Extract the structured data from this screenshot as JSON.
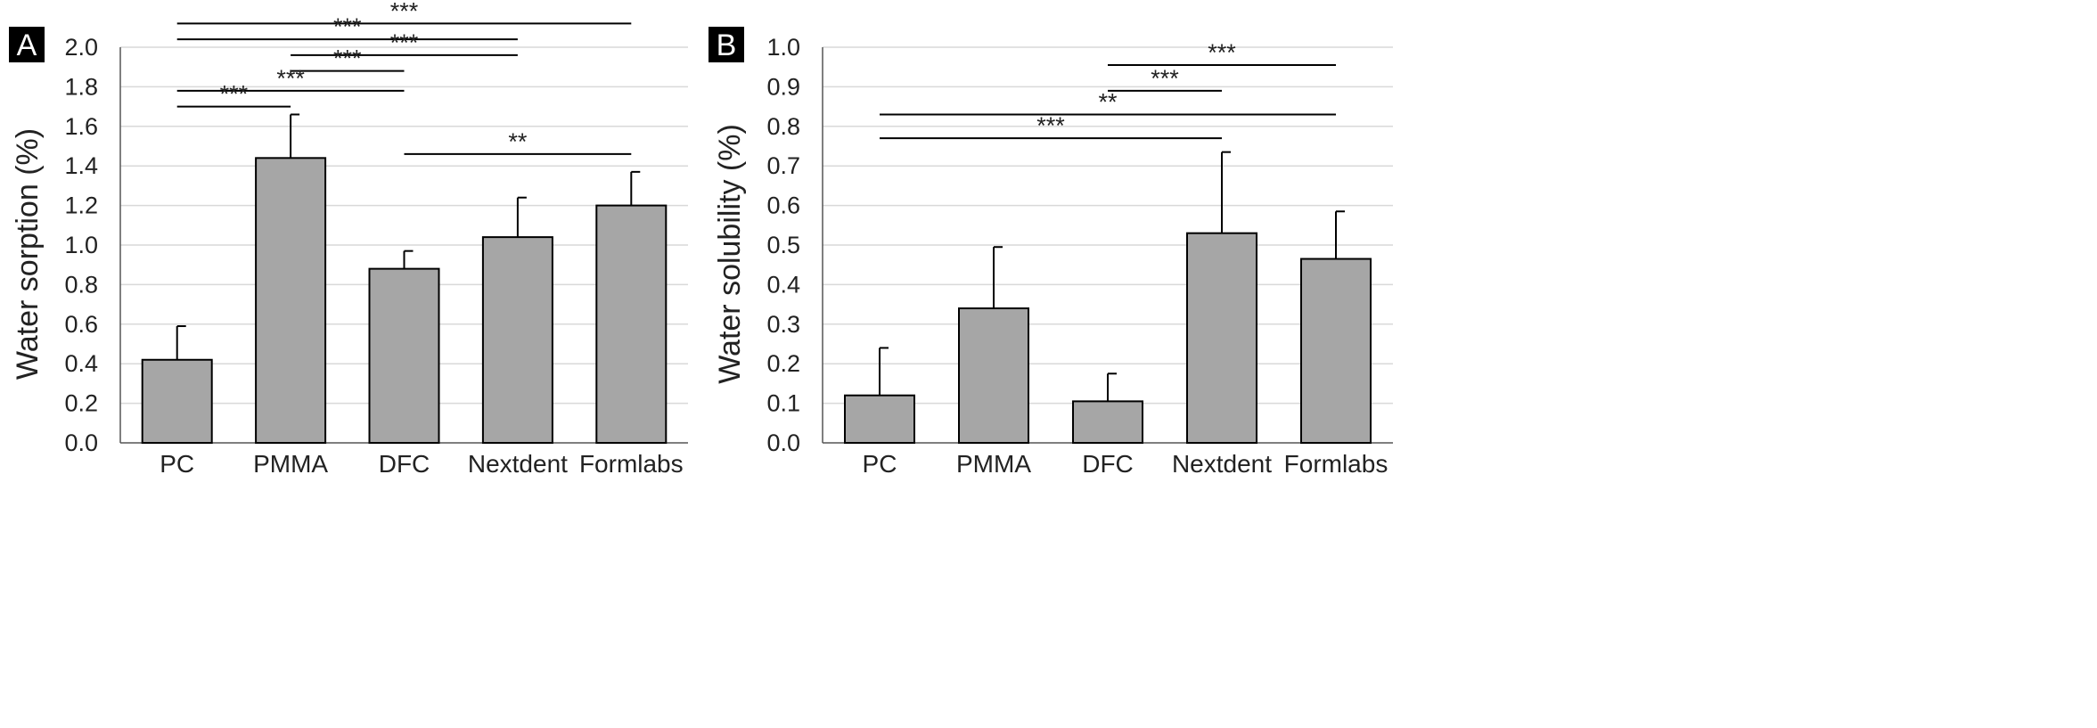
{
  "chart_data": [
    {
      "type": "bar",
      "panel_label": "A",
      "ylabel": "Water sorption (%)",
      "ylim": [
        0,
        2.0
      ],
      "yticks": [
        "0.0",
        "0.2",
        "0.4",
        "0.6",
        "0.8",
        "1.0",
        "1.2",
        "1.4",
        "1.6",
        "1.8",
        "2.0"
      ],
      "categories": [
        "PC",
        "PMMA",
        "DFC",
        "Nextdent",
        "Formlabs"
      ],
      "values": [
        0.42,
        1.44,
        0.88,
        1.04,
        1.2
      ],
      "errors": [
        0.17,
        0.22,
        0.09,
        0.2,
        0.17
      ],
      "bar_color": "#a6a6a6",
      "significance": [
        {
          "from": 0,
          "to": 4,
          "label": "***",
          "y": 2.12
        },
        {
          "from": 0,
          "to": 3,
          "label": "***",
          "y": 2.04
        },
        {
          "from": 1,
          "to": 3,
          "label": "***",
          "y": 1.96
        },
        {
          "from": 1,
          "to": 2,
          "label": "***",
          "y": 1.88
        },
        {
          "from": 0,
          "to": 2,
          "label": "***",
          "y": 1.78
        },
        {
          "from": 0,
          "to": 1,
          "label": "***",
          "y": 1.7
        },
        {
          "from": 2,
          "to": 4,
          "label": "**",
          "y": 1.46
        }
      ]
    },
    {
      "type": "bar",
      "panel_label": "B",
      "ylabel": "Water solubility (%)",
      "ylim": [
        0,
        1.0
      ],
      "yticks": [
        "0.0",
        "0.1",
        "0.2",
        "0.3",
        "0.4",
        "0.5",
        "0.6",
        "0.7",
        "0.8",
        "0.9",
        "1.0"
      ],
      "categories": [
        "PC",
        "PMMA",
        "DFC",
        "Nextdent",
        "Formlabs"
      ],
      "values": [
        0.12,
        0.34,
        0.105,
        0.53,
        0.465
      ],
      "errors": [
        0.12,
        0.155,
        0.07,
        0.205,
        0.12
      ],
      "bar_color": "#a6a6a6",
      "significance": [
        {
          "from": 2,
          "to": 4,
          "label": "***",
          "y": 0.955
        },
        {
          "from": 2,
          "to": 3,
          "label": "***",
          "y": 0.89
        },
        {
          "from": 0,
          "to": 4,
          "label": "**",
          "y": 0.83
        },
        {
          "from": 0,
          "to": 3,
          "label": "***",
          "y": 0.77
        }
      ]
    }
  ]
}
